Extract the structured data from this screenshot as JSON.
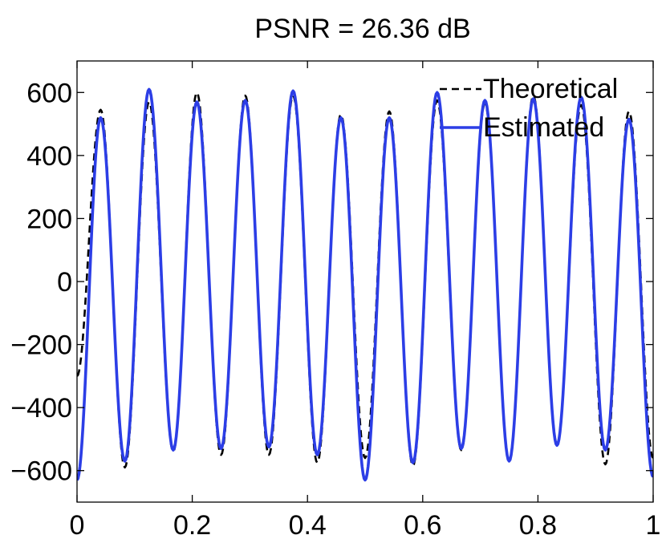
{
  "chart_data": {
    "type": "line",
    "title": "PSNR = 26.36 dB",
    "xlabel": "",
    "ylabel": "",
    "xlim": [
      0,
      1
    ],
    "ylim": [
      -700,
      700
    ],
    "x_ticks": [
      0,
      0.2,
      0.4,
      0.6,
      0.8,
      1
    ],
    "x_tick_labels": [
      "0",
      "0.2",
      "0.4",
      "0.6",
      "0.8",
      "1"
    ],
    "y_ticks": [
      600,
      400,
      200,
      0,
      -200,
      -400,
      -600
    ],
    "y_tick_labels": [
      "600",
      "400",
      "200",
      "0",
      "−200",
      "−400",
      "−600"
    ],
    "grid": false,
    "legend_position": "top-right",
    "legend": [
      "Theoretical",
      "Estimated"
    ],
    "series": [
      {
        "name": "Theoretical",
        "style": "dashed",
        "color": "#000000",
        "x": [
          0.0,
          0.041,
          0.083,
          0.125,
          0.167,
          0.208,
          0.25,
          0.292,
          0.333,
          0.375,
          0.417,
          0.458,
          0.5,
          0.542,
          0.583,
          0.625,
          0.667,
          0.708,
          0.75,
          0.792,
          0.833,
          0.875,
          0.917,
          0.958,
          1.0
        ],
        "y": [
          -300,
          545,
          -590,
          570,
          -540,
          600,
          -550,
          590,
          -550,
          590,
          -575,
          530,
          -560,
          540,
          -585,
          575,
          -535,
          565,
          -570,
          590,
          -515,
          560,
          -580,
          540,
          -560
        ]
      },
      {
        "name": "Estimated",
        "style": "solid",
        "color": "#2c3ee6",
        "x": [
          0.0,
          0.041,
          0.083,
          0.125,
          0.167,
          0.208,
          0.25,
          0.292,
          0.333,
          0.375,
          0.417,
          0.458,
          0.5,
          0.542,
          0.583,
          0.625,
          0.667,
          0.708,
          0.75,
          0.792,
          0.833,
          0.875,
          0.917,
          0.958,
          1.0
        ],
        "y": [
          -630,
          520,
          -570,
          610,
          -535,
          570,
          -530,
          575,
          -525,
          605,
          -550,
          520,
          -630,
          520,
          -575,
          600,
          -530,
          575,
          -570,
          580,
          -520,
          585,
          -535,
          515,
          -620
        ]
      }
    ]
  }
}
